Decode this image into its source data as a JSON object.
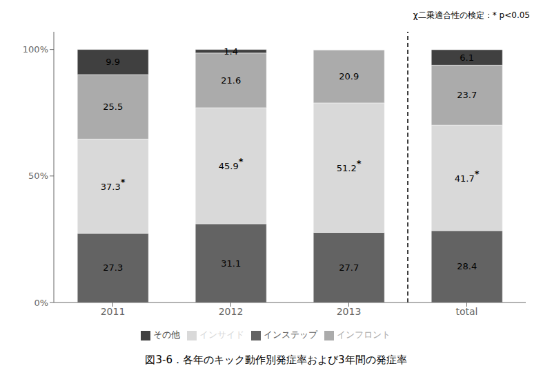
{
  "chart_data": {
    "type": "bar",
    "title": "図3-6．各年のキック動作別発症率および3年間の発症率",
    "annotations": [
      "χ二乗適合性の検定：* p<0.05"
    ],
    "categories": [
      "2011",
      "2012",
      "2013",
      "total"
    ],
    "stacked": true,
    "data_labels": true,
    "legend": "bottom",
    "grid": false,
    "series": [
      {
        "name": "インステップ",
        "color": "#636363",
        "values": [
          27.3,
          31.1,
          27.7,
          28.4
        ]
      },
      {
        "name": "インサイド",
        "color": "#d9d9d9",
        "values": [
          37.3,
          45.9,
          51.2,
          41.7
        ],
        "value_labels": [
          "37.3*",
          "45.9*",
          "51.2*",
          "41.7*"
        ]
      },
      {
        "name": "インフロント",
        "color": "#ababab",
        "values": [
          25.5,
          21.6,
          20.9,
          23.7
        ]
      },
      {
        "name": "その他",
        "color": "#404040",
        "values": [
          9.9,
          1.4,
          0.0,
          6.1
        ]
      }
    ],
    "ylim": [
      0,
      107
    ],
    "yticks": [
      {
        "value": 0,
        "label": "0%"
      },
      {
        "value": 50,
        "label": "50%"
      },
      {
        "value": 100,
        "label": "100%"
      }
    ]
  }
}
